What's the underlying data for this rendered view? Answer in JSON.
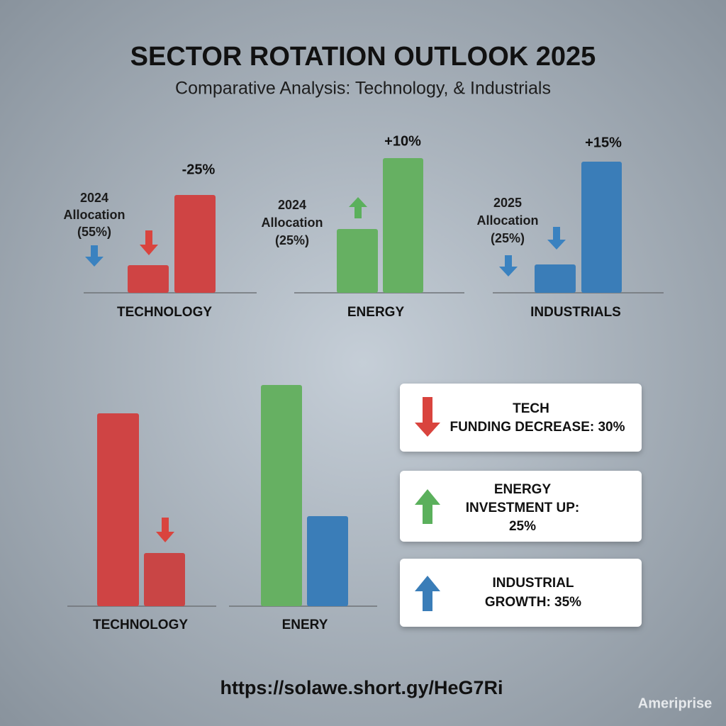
{
  "header": {
    "title": "SECTOR ROTATION OUTLOOK 2025",
    "subtitle": "Comparative Analysis: Technology, & Industrials"
  },
  "top_panels": [
    {
      "label": "TECHNOLOGY",
      "note": [
        "2024",
        "Allocation",
        "(55%)"
      ],
      "change": "-25%"
    },
    {
      "label": "ENERGY",
      "note": [
        "2024",
        "Allocation",
        "(25%)"
      ],
      "change": "+10%"
    },
    {
      "label": "INDUSTRIALS",
      "note": [
        "2025",
        "Allocation",
        "(25%)"
      ],
      "change": "+15%"
    }
  ],
  "bottom_panels": [
    {
      "label": "TECHNOLOGY"
    },
    {
      "label": "ENERY"
    }
  ],
  "callouts": [
    {
      "lines": [
        "TECH",
        "FUNDING DECREASE: 30%"
      ]
    },
    {
      "lines": [
        "ENERGY",
        "INVESTMENT UP:",
        "25%"
      ]
    },
    {
      "lines": [
        "INDUSTRIAL",
        "GROWTH: 35%"
      ]
    }
  ],
  "footer": {
    "url": "https://solawe.short.gy/HeG7Ri",
    "watermark": "Ameriprise"
  }
}
